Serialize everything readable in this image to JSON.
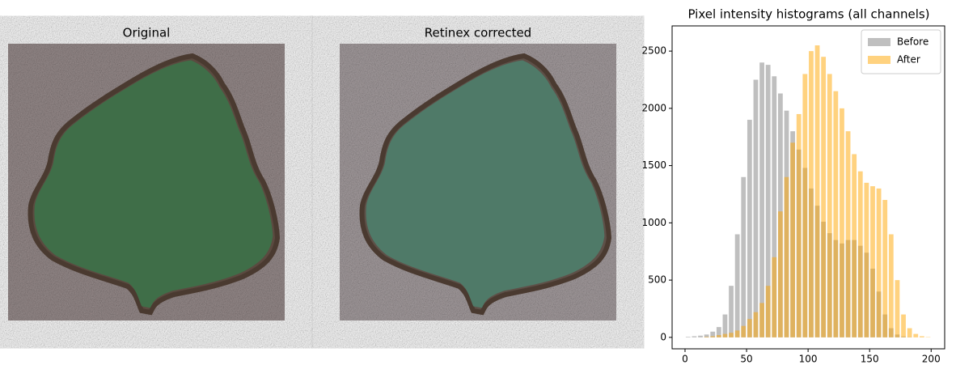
{
  "panels": [
    {
      "title": "Original"
    },
    {
      "title": "Retinex corrected"
    }
  ],
  "chart_data": {
    "type": "histogram",
    "title": "Pixel intensity histograms (all channels)",
    "bins": [
      0,
      5,
      10,
      15,
      20,
      25,
      30,
      35,
      40,
      45,
      50,
      55,
      60,
      65,
      70,
      75,
      80,
      85,
      90,
      95,
      100,
      105,
      110,
      115,
      120,
      125,
      130,
      135,
      140,
      145,
      150,
      155,
      160,
      165,
      170,
      175,
      180,
      185,
      190,
      195,
      200
    ],
    "series": [
      {
        "name": "Before",
        "color": "#808080",
        "values": [
          5,
          10,
          15,
          25,
          50,
          90,
          200,
          450,
          900,
          1400,
          1900,
          2250,
          2400,
          2380,
          2280,
          2130,
          1980,
          1800,
          1640,
          1480,
          1300,
          1150,
          1010,
          910,
          850,
          820,
          850,
          850,
          800,
          740,
          600,
          400,
          200,
          80,
          25,
          8,
          2,
          0,
          0,
          0
        ]
      },
      {
        "name": "After",
        "color": "#ffa500",
        "values": [
          0,
          0,
          0,
          5,
          10,
          20,
          30,
          40,
          60,
          100,
          160,
          220,
          300,
          450,
          700,
          1100,
          1400,
          1700,
          1950,
          2300,
          2500,
          2550,
          2450,
          2300,
          2150,
          2000,
          1800,
          1600,
          1450,
          1350,
          1320,
          1300,
          1200,
          900,
          500,
          200,
          80,
          30,
          10,
          3
        ]
      }
    ],
    "xlim": [
      -10.5,
      211
    ],
    "ylim": [
      -100,
      2720
    ],
    "xticks": [
      0,
      50,
      100,
      150,
      200
    ],
    "yticks": [
      0,
      500,
      1000,
      1500,
      2000,
      2500
    ],
    "opacity": 0.5,
    "legend": "upper right"
  }
}
